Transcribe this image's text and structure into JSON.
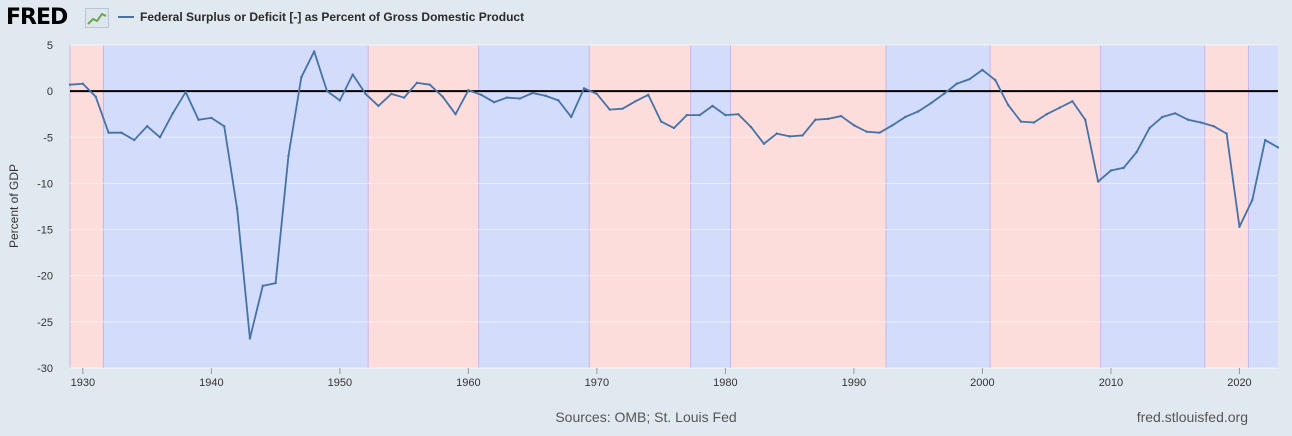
{
  "header": {
    "logo_text": "FRED",
    "logo_icon": "line-chart-icon",
    "series_color": "#4572a7"
  },
  "footer": {
    "source": "Sources: OMB; St. Louis Fed",
    "url": "fred.stlouisfed.org"
  },
  "chart_data": {
    "type": "line",
    "title": "",
    "xlabel": "",
    "ylabel": "Percent of GDP",
    "xlim": [
      1929,
      2023
    ],
    "ylim": [
      -30,
      5
    ],
    "grid": true,
    "legend_position": "top-left",
    "x_ticks": [
      1930,
      1940,
      1950,
      1960,
      1970,
      1980,
      1990,
      2000,
      2010,
      2020
    ],
    "y_ticks": [
      5,
      0,
      -5,
      -10,
      -15,
      -20,
      -25,
      -30
    ],
    "zero_line": true,
    "administration_shading": [
      {
        "start": 1929.0,
        "end": 1931.6,
        "party": "Republican"
      },
      {
        "start": 1931.6,
        "end": 1952.2,
        "party": "Democratic"
      },
      {
        "start": 1952.2,
        "end": 1960.8,
        "party": "Republican"
      },
      {
        "start": 1960.8,
        "end": 1969.4,
        "party": "Democratic"
      },
      {
        "start": 1969.4,
        "end": 1977.3,
        "party": "Republican"
      },
      {
        "start": 1977.3,
        "end": 1980.4,
        "party": "Democratic"
      },
      {
        "start": 1980.4,
        "end": 1992.5,
        "party": "Republican"
      },
      {
        "start": 1992.5,
        "end": 2000.6,
        "party": "Democratic"
      },
      {
        "start": 2000.6,
        "end": 2009.2,
        "party": "Republican"
      },
      {
        "start": 2009.2,
        "end": 2017.3,
        "party": "Democratic"
      },
      {
        "start": 2017.3,
        "end": 2020.7,
        "party": "Republican"
      },
      {
        "start": 2020.7,
        "end": 2023.0,
        "party": "Democratic"
      }
    ],
    "shading_colors": {
      "Republican": "#fddcdc",
      "Democratic": "#d3dcfb"
    },
    "series": [
      {
        "name": "Federal Surplus or Deficit [-] as Percent of Gross Domestic Product",
        "color": "#4572a7",
        "x": [
          1929,
          1930,
          1931,
          1932,
          1933,
          1934,
          1935,
          1936,
          1937,
          1938,
          1939,
          1940,
          1941,
          1942,
          1943,
          1944,
          1945,
          1946,
          1947,
          1948,
          1949,
          1950,
          1951,
          1952,
          1953,
          1954,
          1955,
          1956,
          1957,
          1958,
          1959,
          1960,
          1961,
          1962,
          1963,
          1964,
          1965,
          1966,
          1967,
          1968,
          1969,
          1970,
          1971,
          1972,
          1973,
          1974,
          1975,
          1976,
          1977,
          1978,
          1979,
          1980,
          1981,
          1982,
          1983,
          1984,
          1985,
          1986,
          1987,
          1988,
          1989,
          1990,
          1991,
          1992,
          1993,
          1994,
          1995,
          1996,
          1997,
          1998,
          1999,
          2000,
          2001,
          2002,
          2003,
          2004,
          2005,
          2006,
          2007,
          2008,
          2009,
          2010,
          2011,
          2012,
          2013,
          2014,
          2015,
          2016,
          2017,
          2018,
          2019,
          2020,
          2021,
          2022,
          2023
        ],
        "y": [
          0.7,
          0.8,
          -0.6,
          -4.5,
          -4.5,
          -5.3,
          -3.8,
          -5.0,
          -2.4,
          -0.1,
          -3.1,
          -2.9,
          -3.8,
          -12.7,
          -26.8,
          -21.1,
          -20.8,
          -7.0,
          1.5,
          4.3,
          0.0,
          -1.0,
          1.8,
          -0.3,
          -1.6,
          -0.3,
          -0.7,
          0.9,
          0.7,
          -0.6,
          -2.5,
          0.1,
          -0.4,
          -1.2,
          -0.7,
          -0.8,
          -0.2,
          -0.5,
          -1.0,
          -2.8,
          0.3,
          -0.3,
          -2.0,
          -1.9,
          -1.1,
          -0.4,
          -3.3,
          -4.0,
          -2.6,
          -2.6,
          -1.6,
          -2.6,
          -2.5,
          -3.9,
          -5.7,
          -4.6,
          -4.9,
          -4.8,
          -3.1,
          -3.0,
          -2.7,
          -3.7,
          -4.4,
          -4.5,
          -3.7,
          -2.8,
          -2.2,
          -1.3,
          -0.3,
          0.8,
          1.3,
          2.3,
          1.2,
          -1.5,
          -3.3,
          -3.4,
          -2.5,
          -1.8,
          -1.1,
          -3.1,
          -9.8,
          -8.6,
          -8.3,
          -6.6,
          -4.0,
          -2.8,
          -2.4,
          -3.1,
          -3.4,
          -3.8,
          -4.6,
          -14.7,
          -11.8,
          -5.3,
          -6.1
        ]
      }
    ]
  }
}
